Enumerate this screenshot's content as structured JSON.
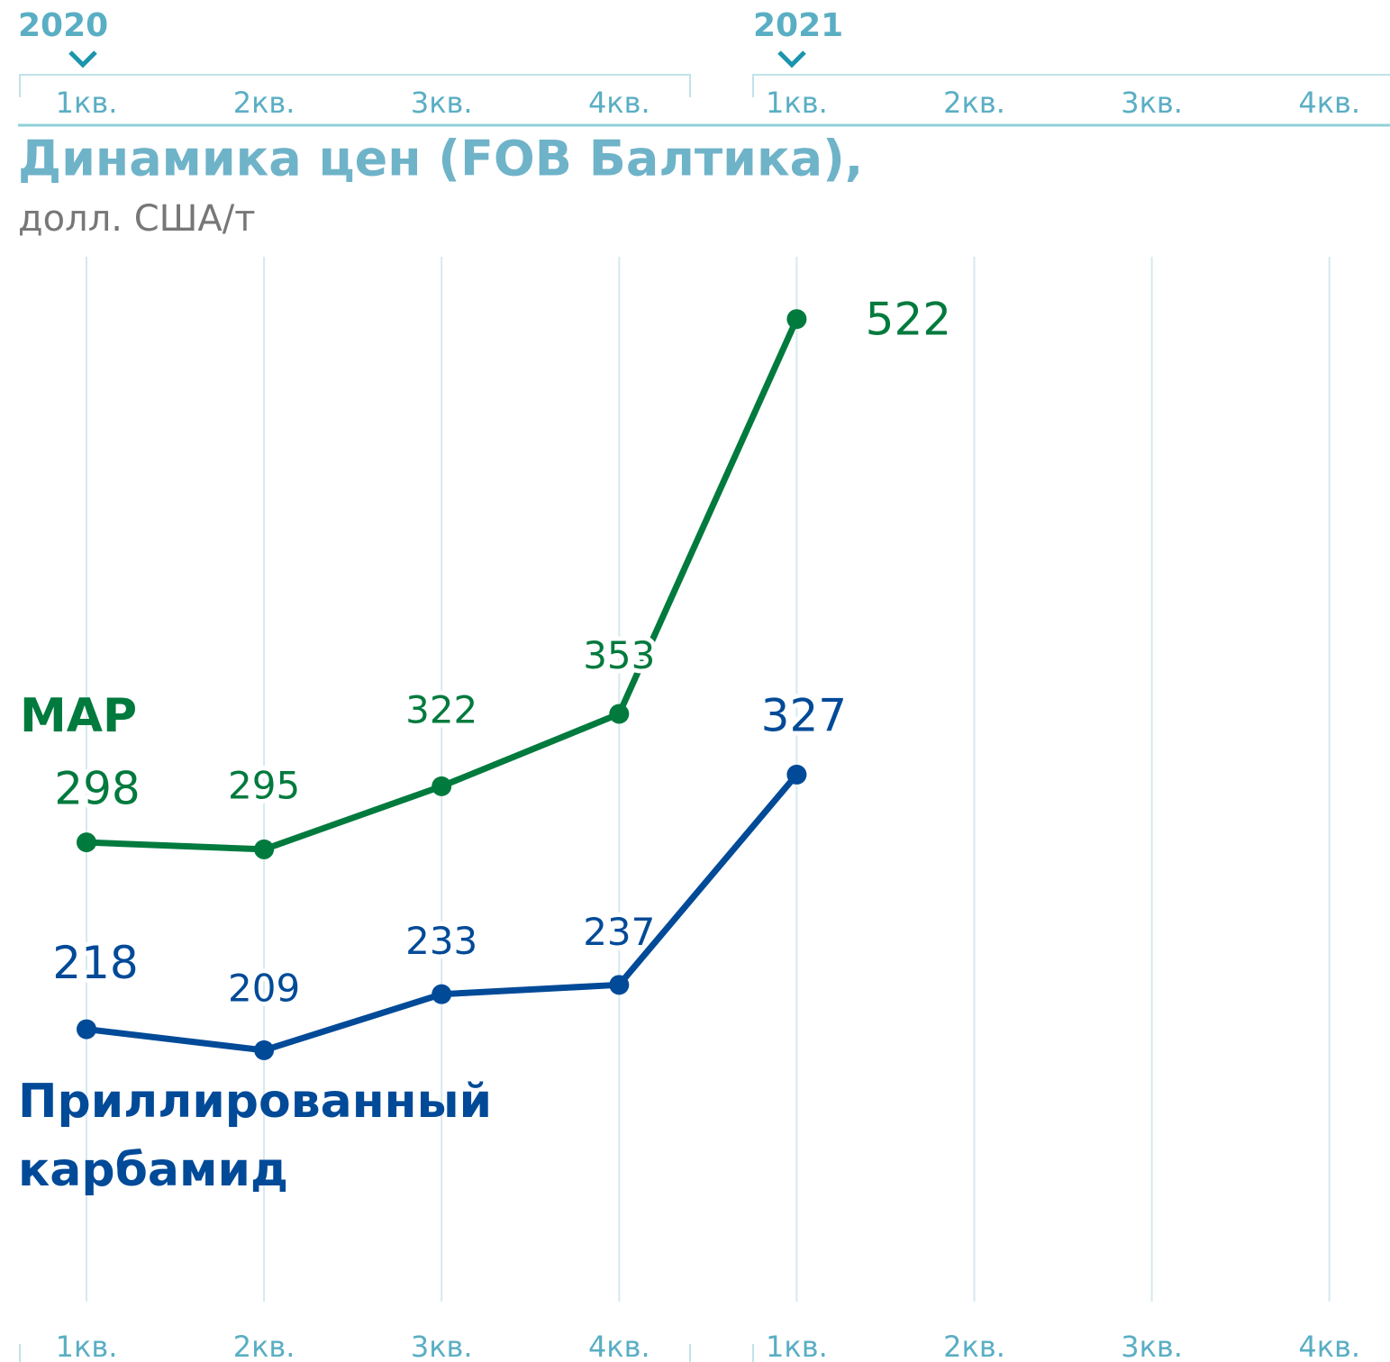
{
  "chart_data": {
    "type": "line",
    "title": "Динамика цен (FOB Балтика),",
    "subtitle": "долл. США/т",
    "years": [
      "2020",
      "2021"
    ],
    "categories": [
      "1кв.",
      "2кв.",
      "3кв.",
      "4кв.",
      "1кв.",
      "2кв.",
      "3кв.",
      "4кв."
    ],
    "series": [
      {
        "name": "МАР",
        "color": "#007a3d",
        "values": [
          298,
          295,
          322,
          353,
          522,
          null,
          null,
          null
        ]
      },
      {
        "name": "Приллированный карбамид",
        "color": "#004a98",
        "values": [
          218,
          209,
          233,
          237,
          327,
          null,
          null,
          null
        ]
      }
    ],
    "ylim": [
      100,
      550
    ],
    "grid": true
  }
}
